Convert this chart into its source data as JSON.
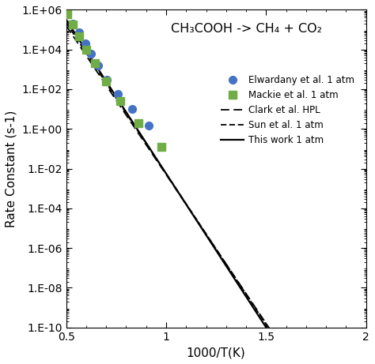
{
  "title": "CH₃COOH -> CH₄ + CO₂",
  "xlabel": "1000/T(K)",
  "ylabel": "Rate Constant (s-1)",
  "xlim": [
    0.5,
    2.0
  ],
  "ylim_log": [
    -10,
    6
  ],
  "background_color": "#ffffff",
  "elwardany_x": [
    0.535,
    0.565,
    0.595,
    0.625,
    0.66,
    0.705,
    0.76,
    0.83,
    0.915
  ],
  "elwardany_y": [
    200000.0,
    70000.0,
    20000.0,
    6000.0,
    1500.0,
    300.0,
    60.0,
    10.0,
    1.5
  ],
  "mackie_x": [
    0.505,
    0.535,
    0.565,
    0.6,
    0.645,
    0.7,
    0.77,
    0.86,
    0.975
  ],
  "mackie_y": [
    600000.0,
    180000.0,
    45000.0,
    10000.0,
    2000.0,
    250.0,
    25.0,
    2.0,
    0.12
  ],
  "elwardany_color": "#4472C4",
  "mackie_color": "#70AD47",
  "line_color": "#000000",
  "line_x_start": 0.5,
  "line_x_end": 1.53,
  "this_work_slope": -15.5,
  "this_work_intercept": 13.25,
  "sun_slope": -15.2,
  "sun_intercept": 12.95,
  "clark_slope": -15.0,
  "clark_intercept": 12.7,
  "legend_labels": [
    "Elwardany et al. 1 atm",
    "Mackie et al. 1 atm",
    "Clark et al. HPL",
    "Sun et al. 1 atm",
    "This work 1 atm"
  ],
  "yticks_exp": [
    6,
    4,
    2,
    0,
    -2,
    -4,
    -6,
    -8,
    -10
  ],
  "xticks": [
    0.5,
    1.0,
    1.5,
    2.0
  ],
  "xticklabels": [
    "0.5",
    "1",
    "1.5",
    "2"
  ]
}
